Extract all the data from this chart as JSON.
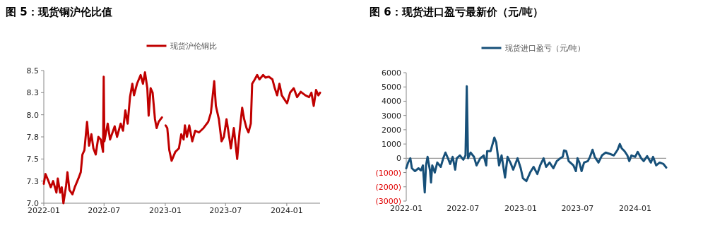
{
  "chart_data": [
    {
      "type": "line",
      "title": "图 5：现货铜沪伦比值",
      "legend": "top",
      "grid": false,
      "x": [
        "2022-01-01",
        "2022-01-06",
        "2022-01-15",
        "2022-01-22",
        "2022-01-29",
        "2022-02-08",
        "2022-02-12",
        "2022-02-19",
        "2022-02-24",
        "2022-03-01",
        "2022-03-09",
        "2022-03-13",
        "2022-03-19",
        "2022-03-28",
        "2022-04-04",
        "2022-04-15",
        "2022-04-22",
        "2022-04-27",
        "2022-05-03",
        "2022-05-08",
        "2022-05-11",
        "2022-05-17",
        "2022-05-24",
        "2022-05-30",
        "2022-06-06",
        "2022-06-14",
        "2022-06-21",
        "2022-06-28",
        "2022-06-30",
        "2022-07-02",
        "2022-07-12",
        "2022-07-19",
        "2022-08-02",
        "2022-08-09",
        "2022-08-20",
        "2022-08-27",
        "2022-09-03",
        "2022-09-10",
        "2022-09-17",
        "2022-09-24",
        "2022-09-29",
        "2022-10-08",
        "2022-10-19",
        "2022-10-26",
        "2022-11-01",
        "2022-11-08",
        "2022-11-12",
        "2022-11-18",
        "2022-11-24",
        "2022-12-01",
        "2022-12-06",
        "2022-12-12",
        "2022-12-22",
        "2022-12-28",
        "2023-01-02",
        "2023-01-07",
        "2023-01-13",
        "2023-01-20",
        "2023-01-31",
        "2023-02-11",
        "2023-02-18",
        "2023-02-25",
        "2023-03-01",
        "2023-03-07",
        "2023-03-14",
        "2023-03-23",
        "2023-04-01",
        "2023-04-12",
        "2023-04-26",
        "2023-05-10",
        "2023-05-18",
        "2023-05-28",
        "2023-06-02",
        "2023-06-11",
        "2023-06-19",
        "2023-06-26",
        "2023-07-04",
        "2023-07-12",
        "2023-07-17",
        "2023-07-26",
        "2023-08-05",
        "2023-08-12",
        "2023-08-20",
        "2023-08-26",
        "2023-09-02",
        "2023-09-08",
        "2023-09-15",
        "2023-09-19",
        "2023-09-27",
        "2023-10-04",
        "2023-10-11",
        "2023-10-22",
        "2023-10-29",
        "2023-11-08",
        "2023-11-19",
        "2023-11-26",
        "2023-12-03",
        "2023-12-10",
        "2023-12-17",
        "2023-12-24",
        "2024-01-02",
        "2024-01-11",
        "2024-01-22",
        "2024-02-01",
        "2024-02-12",
        "2024-02-26",
        "2024-03-08",
        "2024-03-15",
        "2024-03-22",
        "2024-03-29",
        "2024-04-05",
        "2024-04-10"
      ],
      "series": [
        {
          "name": "现货沪伦铜比",
          "color": "#c00000",
          "values": [
            7.22,
            7.33,
            7.25,
            7.18,
            7.25,
            7.12,
            7.28,
            7.12,
            7.18,
            7.0,
            7.2,
            7.35,
            7.15,
            7.1,
            7.18,
            7.28,
            7.35,
            7.55,
            7.6,
            7.8,
            7.92,
            7.65,
            7.78,
            7.62,
            7.55,
            7.75,
            7.72,
            7.58,
            8.43,
            7.7,
            7.9,
            7.72,
            7.87,
            7.75,
            7.9,
            7.82,
            8.05,
            7.9,
            8.2,
            8.35,
            8.22,
            8.35,
            8.45,
            8.35,
            8.48,
            8.3,
            7.99,
            8.3,
            8.25,
            7.95,
            7.85,
            7.92,
            7.97,
            null,
            7.88,
            7.85,
            7.6,
            7.48,
            7.58,
            7.62,
            7.78,
            7.72,
            7.88,
            7.75,
            7.88,
            7.7,
            7.82,
            7.8,
            7.85,
            7.92,
            8.02,
            8.38,
            8.1,
            7.95,
            7.7,
            7.75,
            7.95,
            7.75,
            7.62,
            7.85,
            7.5,
            7.8,
            8.08,
            7.95,
            7.85,
            7.8,
            7.9,
            8.35,
            8.4,
            8.45,
            8.4,
            8.45,
            8.42,
            8.43,
            8.4,
            8.3,
            8.22,
            8.35,
            8.22,
            8.18,
            8.13,
            8.25,
            8.3,
            8.2,
            8.26,
            8.22,
            8.2,
            8.25,
            8.1,
            8.28,
            8.22,
            8.25
          ]
        }
      ],
      "xlim": [
        "2022-01-01",
        "2024-04-10"
      ],
      "xticks": [
        {
          "value": "2022-01-01",
          "label": "2022-01"
        },
        {
          "value": "2022-07-01",
          "label": "2022-07"
        },
        {
          "value": "2023-01-01",
          "label": "2023-01"
        },
        {
          "value": "2023-07-01",
          "label": "2023-07"
        },
        {
          "value": "2024-01-01",
          "label": "2024-01"
        }
      ],
      "ylim": [
        7.0,
        8.5
      ],
      "yticks": [
        {
          "value": 7.0,
          "label": "7.0"
        },
        {
          "value": 7.25,
          "label": "7.3"
        },
        {
          "value": 7.5,
          "label": "7.5"
        },
        {
          "value": 7.75,
          "label": "7.8"
        },
        {
          "value": 8.0,
          "label": "8.0"
        },
        {
          "value": 8.25,
          "label": "8.3"
        },
        {
          "value": 8.5,
          "label": "8.5"
        }
      ]
    },
    {
      "type": "line",
      "title": "图 6：现货进口盈亏最新价（元/吨）",
      "legend": "top",
      "grid": false,
      "x": [
        "2022-01-01",
        "2022-01-07",
        "2022-01-14",
        "2022-01-19",
        "2022-01-29",
        "2022-02-09",
        "2022-02-17",
        "2022-02-23",
        "2022-03-01",
        "2022-03-05",
        "2022-03-10",
        "2022-03-18",
        "2022-03-21",
        "2022-03-25",
        "2022-04-02",
        "2022-04-10",
        "2022-04-21",
        "2022-04-29",
        "2022-05-06",
        "2022-05-14",
        "2022-05-21",
        "2022-05-29",
        "2022-06-06",
        "2022-06-11",
        "2022-06-21",
        "2022-07-02",
        "2022-07-09",
        "2022-07-13",
        "2022-07-17",
        "2022-07-25",
        "2022-08-05",
        "2022-08-13",
        "2022-08-25",
        "2022-09-05",
        "2022-09-13",
        "2022-09-16",
        "2022-09-27",
        "2022-10-09",
        "2022-10-15",
        "2022-10-20",
        "2022-10-24",
        "2022-11-01",
        "2022-11-12",
        "2022-11-20",
        "2022-12-01",
        "2022-12-08",
        "2022-12-22",
        "2023-01-01",
        "2023-01-08",
        "2023-01-19",
        "2023-01-31",
        "2023-02-11",
        "2023-02-23",
        "2023-03-04",
        "2023-03-15",
        "2023-03-23",
        "2023-04-03",
        "2023-04-15",
        "2023-04-26",
        "2023-05-07",
        "2023-05-15",
        "2023-05-19",
        "2023-05-26",
        "2023-06-03",
        "2023-06-18",
        "2023-06-26",
        "2023-07-01",
        "2023-07-07",
        "2023-07-14",
        "2023-07-22",
        "2023-08-03",
        "2023-08-10",
        "2023-08-18",
        "2023-08-25",
        "2023-09-06",
        "2023-09-17",
        "2023-09-29",
        "2023-10-13",
        "2023-10-25",
        "2023-11-06",
        "2023-11-13",
        "2023-11-19",
        "2023-11-28",
        "2023-12-07",
        "2023-12-13",
        "2023-12-20",
        "2024-01-01",
        "2024-01-09",
        "2024-01-20",
        "2024-01-28",
        "2024-02-08",
        "2024-02-20",
        "2024-02-27",
        "2024-03-08",
        "2024-03-19",
        "2024-03-31",
        "2024-04-09"
      ],
      "series": [
        {
          "name": "现货进口盈亏（元/吨）",
          "color": "#175079",
          "values": [
            -700,
            -300,
            0,
            -700,
            -900,
            -700,
            -850,
            -500,
            -2400,
            -500,
            100,
            -900,
            -1700,
            -500,
            -1000,
            -300,
            -600,
            0,
            400,
            0,
            -400,
            100,
            -800,
            0,
            200,
            -100,
            200,
            5050,
            0,
            400,
            100,
            -500,
            0,
            200,
            -500,
            500,
            500,
            1450,
            1100,
            200,
            -500,
            200,
            -1350,
            100,
            -400,
            -800,
            0,
            -700,
            -1400,
            -1600,
            -1000,
            -600,
            -1100,
            -500,
            0,
            -600,
            -300,
            -700,
            -200,
            0,
            100,
            550,
            500,
            -200,
            -500,
            -900,
            0,
            -300,
            -900,
            -300,
            -200,
            100,
            600,
            100,
            -300,
            200,
            400,
            300,
            200,
            600,
            1000,
            700,
            500,
            200,
            -200,
            200,
            100,
            450,
            0,
            -200,
            150,
            -300,
            100,
            -500,
            -300,
            -400,
            -650
          ]
        }
      ],
      "xlim": [
        "2022-01-01",
        "2024-04-09"
      ],
      "xticks": [
        {
          "value": "2022-01-01",
          "label": "2022-01"
        },
        {
          "value": "2022-07-01",
          "label": "2022-07"
        },
        {
          "value": "2023-01-01",
          "label": "2023-01"
        },
        {
          "value": "2023-07-01",
          "label": "2023-07"
        },
        {
          "value": "2024-01-01",
          "label": "2024-01"
        }
      ],
      "ylim": [
        -3000,
        6000
      ],
      "ref_lines": [
        {
          "axis": "y",
          "value": 0,
          "color": "#999999"
        }
      ],
      "yticks": [
        {
          "value": -3000,
          "label": "(3000)"
        },
        {
          "value": -2000,
          "label": "(2000)"
        },
        {
          "value": -1000,
          "label": "(1000)"
        },
        0,
        1000,
        2000,
        3000,
        4000,
        5000,
        6000
      ]
    }
  ]
}
